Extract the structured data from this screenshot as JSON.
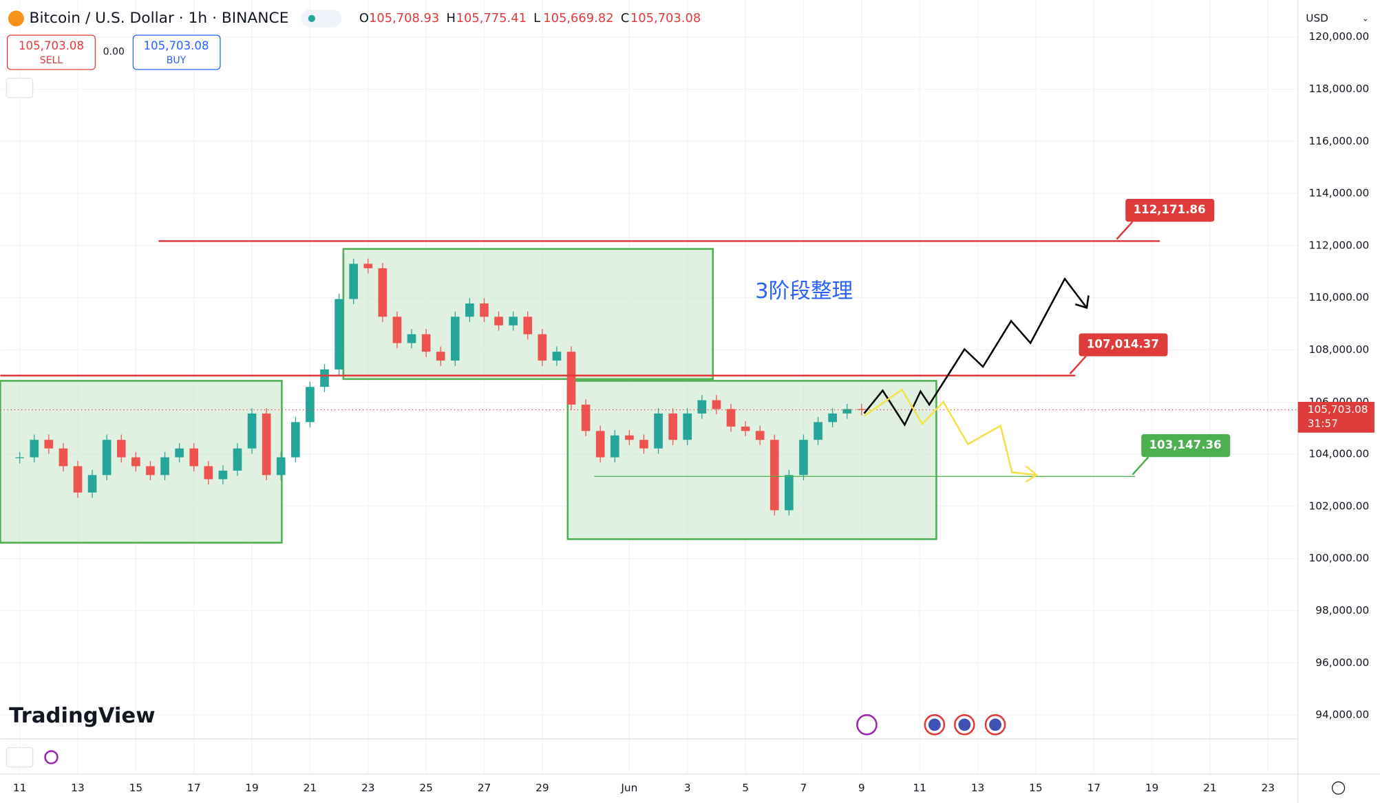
{
  "header": {
    "symbol": "Bitcoin / U.S. Dollar · 1h · BINANCE",
    "ohlc": [
      {
        "key": "O",
        "value": "105,708.93"
      },
      {
        "key": "H",
        "value": "105,775.41"
      },
      {
        "key": "L",
        "value": "105,669.82"
      },
      {
        "key": "C",
        "value": "105,703.08"
      }
    ],
    "sell": {
      "price": "105,703.08",
      "label": "SELL"
    },
    "spread": "0.00",
    "buy": {
      "price": "105,703.08",
      "label": "BUY"
    },
    "currency": "USD"
  },
  "annotation": "3阶段整理",
  "watermark": "TradingView",
  "chart_data": {
    "type": "candlestick",
    "x": [
      0,
      0.5,
      1,
      1.5,
      2,
      2.5,
      3,
      3.5,
      4,
      4.5,
      5,
      5.5,
      6,
      6.5,
      7,
      7.5,
      8,
      8.5,
      9,
      9.5,
      10,
      10.5,
      11,
      11.5,
      12,
      12.5,
      13,
      13.5,
      14,
      14.5,
      15,
      15.5,
      16,
      16.5,
      17,
      17.5,
      18,
      18.5,
      19,
      19.5,
      20,
      20.5,
      21,
      21.5,
      22,
      22.5,
      23,
      23.5,
      24,
      24.5,
      25,
      25.5,
      26,
      26.5,
      27,
      27.5,
      28,
      28.5,
      29
    ],
    "values": [
      103880,
      104550,
      104220,
      103540,
      102530,
      103200,
      104550,
      103880,
      103540,
      103200,
      103880,
      104220,
      103540,
      103040,
      103370,
      104220,
      105560,
      103200,
      103880,
      105230,
      106580,
      107250,
      109950,
      111300,
      111130,
      109270,
      108260,
      108600,
      107930,
      107590,
      109270,
      109780,
      109270,
      108940,
      109270,
      108600,
      107590,
      107930,
      105900,
      104890,
      103880,
      104720,
      104550,
      104220,
      105560,
      104550,
      105560,
      106070,
      105730,
      105060,
      104890,
      104550,
      101850,
      103200,
      104550,
      105230,
      105560,
      105730,
      105703.08
    ],
    "up_color": "#26a69a",
    "down_color": "#ef5350",
    "ylim": [
      93086,
      121416
    ],
    "yticks": [
      {
        "value": 94000,
        "label": "94,000.00"
      },
      {
        "value": 96000,
        "label": "96,000.00"
      },
      {
        "value": 98000,
        "label": "98,000.00"
      },
      {
        "value": 100000,
        "label": "100,000.00"
      },
      {
        "value": 102000,
        "label": "102,000.00"
      },
      {
        "value": 104000,
        "label": "104,000.00"
      },
      {
        "value": 106000,
        "label": "106,000.00"
      },
      {
        "value": 108000,
        "label": "108,000.00"
      },
      {
        "value": 110000,
        "label": "110,000.00"
      },
      {
        "value": 112000,
        "label": "112,000.00"
      },
      {
        "value": 114000,
        "label": "114,000.00"
      },
      {
        "value": 116000,
        "label": "116,000.00"
      },
      {
        "value": 118000,
        "label": "118,000.00"
      },
      {
        "value": 120000,
        "label": "120,000.00"
      }
    ],
    "xlim": [
      -0.67,
      44.03
    ],
    "xticks": [
      {
        "value": 0,
        "label": "11"
      },
      {
        "value": 2,
        "label": "13"
      },
      {
        "value": 4,
        "label": "15"
      },
      {
        "value": 6,
        "label": "17"
      },
      {
        "value": 8,
        "label": "19"
      },
      {
        "value": 10,
        "label": "21"
      },
      {
        "value": 12,
        "label": "23"
      },
      {
        "value": 14,
        "label": "25"
      },
      {
        "value": 16,
        "label": "27"
      },
      {
        "value": 18,
        "label": "29"
      },
      {
        "value": 21,
        "label": "Jun"
      },
      {
        "value": 23,
        "label": "3"
      },
      {
        "value": 25,
        "label": "5"
      },
      {
        "value": 27,
        "label": "7"
      },
      {
        "value": 29,
        "label": "9"
      },
      {
        "value": 31,
        "label": "11"
      },
      {
        "value": 33,
        "label": "13"
      },
      {
        "value": 35,
        "label": "15"
      },
      {
        "value": 37,
        "label": "17"
      },
      {
        "value": 39,
        "label": "19"
      },
      {
        "value": 41,
        "label": "21"
      },
      {
        "value": 43,
        "label": "23"
      }
    ],
    "grid": true,
    "levels": [
      {
        "value": 112171.86,
        "label": "112,171.86",
        "color": "#e03b3b"
      },
      {
        "value": 107014.37,
        "label": "107,014.37",
        "color": "#e03b3b"
      },
      {
        "value": 103147.36,
        "label": "103,147.36",
        "color": "#4caf50"
      }
    ],
    "last_price": {
      "value": 105703.08,
      "label": "105,703.08"
    },
    "countdown": "31:57"
  }
}
